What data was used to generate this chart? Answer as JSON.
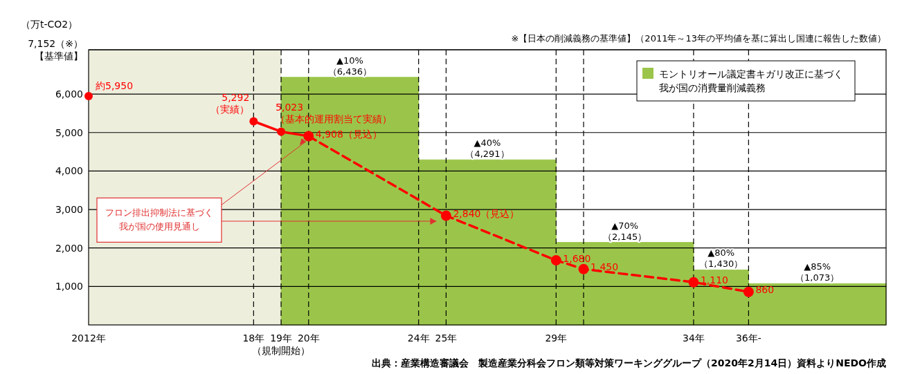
{
  "chart_data": {
    "type": "line",
    "ylabel": "（万t-CO2）",
    "xlim": [
      "2012",
      "2041"
    ],
    "xticks": [
      {
        "value": "2012",
        "label": "2012年"
      },
      {
        "value": "2018",
        "label": "18年"
      },
      {
        "value": "2019",
        "label": "19年（規制開始）"
      },
      {
        "value": "2020",
        "label": "20年"
      },
      {
        "value": "2024",
        "label": "24年"
      },
      {
        "value": "2025",
        "label": "25年"
      },
      {
        "value": "2029",
        "label": "29年"
      },
      {
        "value": "2034",
        "label": "34年"
      },
      {
        "value": "2036",
        "label": "36年-"
      }
    ],
    "ylim": [
      0,
      7152
    ],
    "yticks": [
      {
        "value": 1000,
        "label": "1,000"
      },
      {
        "value": 2000,
        "label": "2,000"
      },
      {
        "value": 3000,
        "label": "3,000"
      },
      {
        "value": 4000,
        "label": "4,000"
      },
      {
        "value": 5000,
        "label": "5,000"
      },
      {
        "value": 6000,
        "label": "6,000"
      },
      {
        "value": 7152,
        "label": "7,152（※）【基準値】"
      }
    ],
    "grid": "y",
    "legend": "top right",
    "marker": "circle",
    "series": [
      {
        "type": "area",
        "marker": "none",
        "name": "モントリオール議定書キガリ改正に基づく我が国の消費量削減義務",
        "color": "#9bc54a",
        "x": [
          "2019",
          "2021-07",
          "2024",
          "2024",
          "2026-07",
          "2029",
          "2029",
          "2031-07",
          "2034",
          "2034",
          "2035",
          "2036",
          "2036",
          "2038-07",
          "2041"
        ],
        "values": [
          6436,
          6436,
          6436,
          4291,
          4291,
          4291,
          2145,
          2145,
          2145,
          1430,
          1430,
          1430,
          1073,
          1073,
          1073
        ],
        "value_labels": [
          null,
          "▲10%\n（6,436）",
          null,
          null,
          "▲40%\n（4,291）",
          null,
          null,
          "▲70%\n（2,145）",
          null,
          null,
          "▲80%\n（1,430）",
          null,
          null,
          "▲85%\n（1,073）",
          null
        ]
      },
      {
        "type": "scatter",
        "color": "#ff0000",
        "x": [
          "2012"
        ],
        "values": [
          5950
        ],
        "value_labels": [
          "約5,950"
        ]
      },
      {
        "type": "line",
        "line_style": "solid",
        "color": "#ff0000",
        "x": [
          "2018",
          "2019",
          "2020"
        ],
        "values": [
          5292,
          5023,
          4908
        ],
        "value_labels": [
          "5,292\n（実績）",
          "5,023\n（基本的運用割当て実績）",
          "4,908（見込）"
        ]
      },
      {
        "type": "line",
        "line_style": "dashed",
        "color": "#ff0000",
        "x": [
          "2020",
          "2025",
          "2029",
          "2030",
          "2034",
          "2036"
        ],
        "values": [
          4908,
          2840,
          1680,
          1450,
          1110,
          860
        ],
        "value_labels": [
          null,
          "2,840（見込）",
          "1,680",
          "1,450",
          "1,110",
          "860"
        ]
      }
    ],
    "bands": [
      {
        "axis": "x",
        "from": "2012",
        "to": "2019",
        "color": "#eeeedd"
      }
    ],
    "ref_lines": [
      {
        "axis": "x",
        "value": "2018",
        "line_style": "dashed"
      },
      {
        "axis": "x",
        "value": "2019",
        "line_style": "dashed"
      },
      {
        "axis": "x",
        "value": "2020",
        "line_style": "dashed"
      },
      {
        "axis": "x",
        "value": "2024",
        "line_style": "dashed"
      },
      {
        "axis": "x",
        "value": "2025",
        "line_style": "dashed"
      },
      {
        "axis": "x",
        "value": "2029",
        "line_style": "dashed"
      },
      {
        "axis": "x",
        "value": "2030",
        "line_style": "dashed"
      },
      {
        "axis": "x",
        "value": "2034",
        "line_style": "dashed"
      },
      {
        "axis": "x",
        "value": "2036",
        "line_style": "dashed"
      }
    ],
    "annotations": [
      {
        "text": "フロン排出抑制法に基づく我が国の使用見通し",
        "x": "2020",
        "y": 4908
      },
      "※【日本の削減義務の基準値】（2011年～13年の平均値を基に算出し国連に報告した数値）",
      "出典：産業構造審議会　製造産業分科会フロン類等対策ワーキンググループ（2020年2月14日）資料よりNEDO作成"
    ]
  }
}
